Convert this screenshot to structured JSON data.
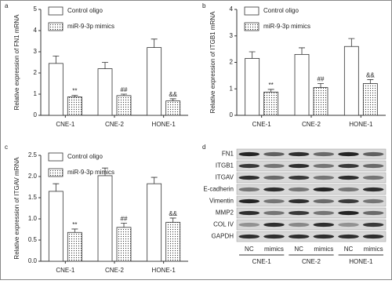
{
  "chart_data": [
    {
      "type": "bar",
      "panel": "a",
      "y_label": "Relative expression of FN1 mRNA",
      "categories": [
        "CNE-1",
        "CNE-2",
        "HONE-1"
      ],
      "series": [
        {
          "name": "Control oligo",
          "color": "#ffffff",
          "values": [
            2.45,
            2.2,
            3.2
          ],
          "errors": [
            0.35,
            0.3,
            0.4
          ]
        },
        {
          "name": "miR-9-3p mimics",
          "color": "#ffffff",
          "hatch": "dots",
          "values": [
            0.87,
            0.93,
            0.68
          ],
          "errors": [
            0.07,
            0.07,
            0.1
          ]
        }
      ],
      "annotations": [
        "**",
        "##",
        "&&"
      ],
      "ylim": [
        0,
        5
      ],
      "yticks": [
        0,
        1,
        2,
        3,
        4,
        5
      ]
    },
    {
      "type": "bar",
      "panel": "b",
      "y_label": "Relative expression of ITGB1 mRNA",
      "categories": [
        "CNE-1",
        "CNE-2",
        "HONE-1"
      ],
      "series": [
        {
          "name": "Control oligo",
          "color": "#ffffff",
          "values": [
            2.15,
            2.3,
            2.6
          ],
          "errors": [
            0.25,
            0.25,
            0.3
          ]
        },
        {
          "name": "miR-9-3p mimics",
          "color": "#ffffff",
          "hatch": "dots",
          "values": [
            0.88,
            1.05,
            1.2
          ],
          "errors": [
            0.1,
            0.15,
            0.15
          ]
        }
      ],
      "annotations": [
        "**",
        "##",
        "&&"
      ],
      "ylim": [
        0,
        4
      ],
      "yticks": [
        0,
        1,
        2,
        3,
        4
      ]
    },
    {
      "type": "bar",
      "panel": "c",
      "y_label": "Relative expression of ITGAV mRNA",
      "categories": [
        "CNE-1",
        "CNE-2",
        "HONE-1"
      ],
      "series": [
        {
          "name": "Control oligo",
          "color": "#ffffff",
          "values": [
            1.65,
            2.02,
            1.83
          ],
          "errors": [
            0.18,
            0.18,
            0.15
          ]
        },
        {
          "name": "miR-9-3p mimics",
          "color": "#ffffff",
          "hatch": "dots",
          "values": [
            0.68,
            0.8,
            0.92
          ],
          "errors": [
            0.08,
            0.1,
            0.1
          ]
        }
      ],
      "annotations": [
        "**",
        "##",
        "&&"
      ],
      "ylim": [
        0,
        2.5
      ],
      "yticks": [
        {
          "value": 0,
          "label": "0.0"
        },
        0.5,
        {
          "value": 1,
          "label": "1.0"
        },
        1.5,
        {
          "value": 2,
          "label": "2.0"
        },
        2.5
      ]
    }
  ],
  "blot": {
    "panel": "d",
    "proteins": [
      "FN1",
      "ITGB1",
      "ITGAV",
      "E-cadherin",
      "Vimentin",
      "MMP2",
      "COL IV",
      "GAPDH"
    ],
    "lanes": [
      "NC",
      "mimics",
      "NC",
      "mimics",
      "NC",
      "mimics"
    ],
    "groups": [
      "CNE-1",
      "CNE-2",
      "HONE-1"
    ]
  }
}
